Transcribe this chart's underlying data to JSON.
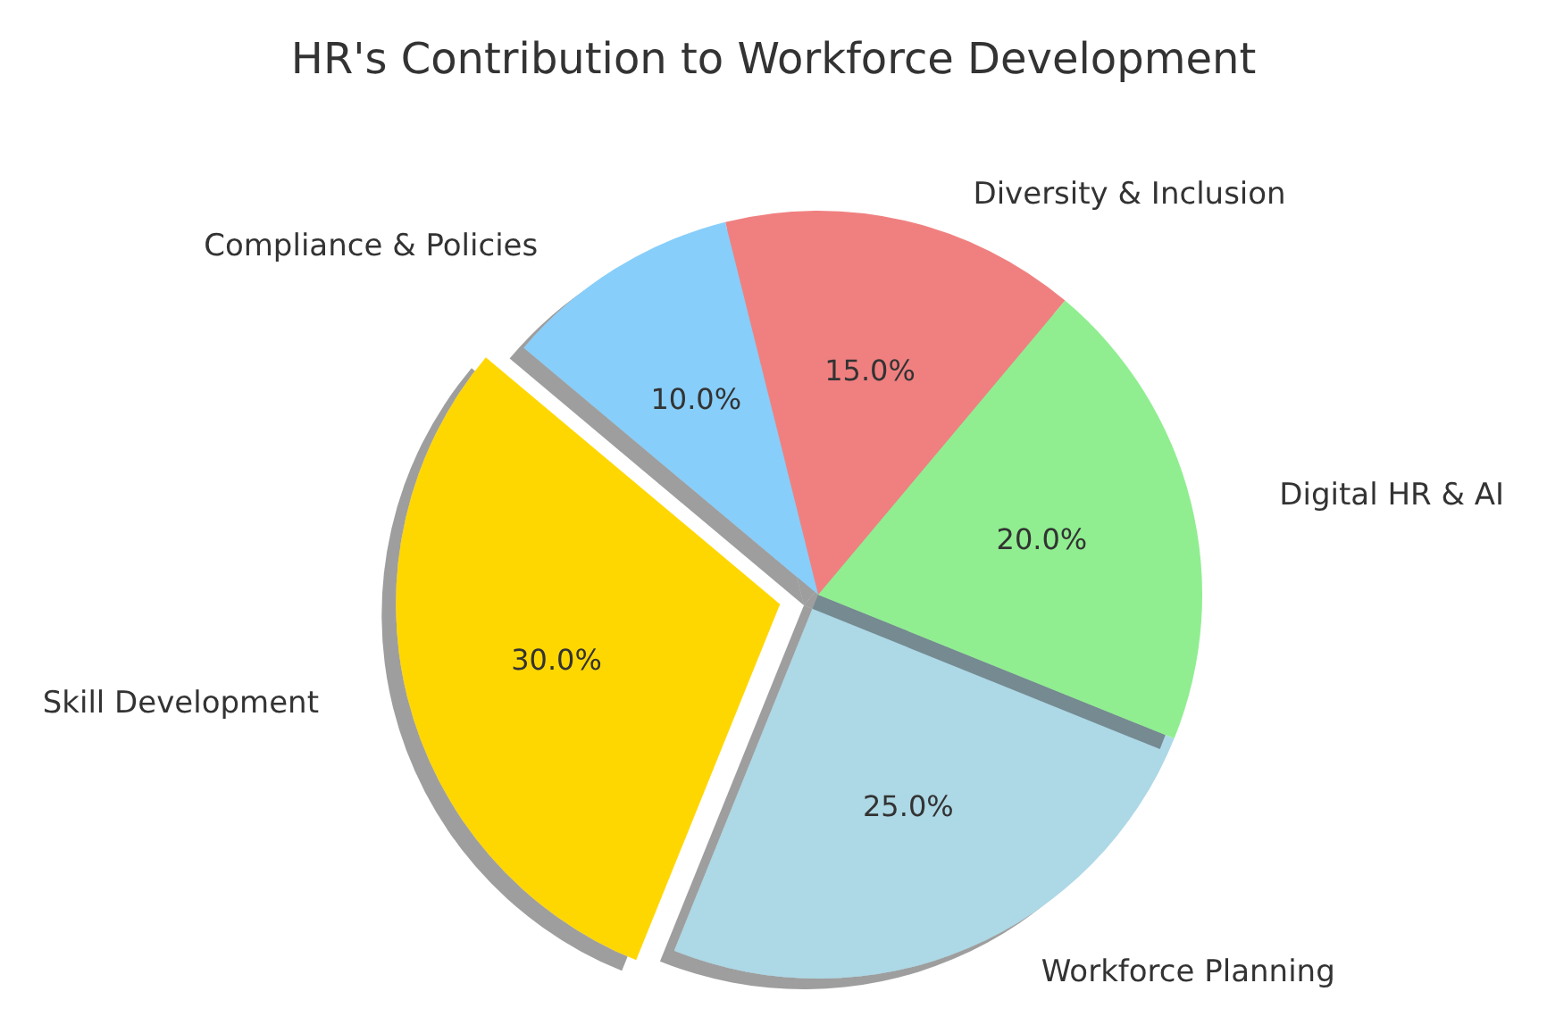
{
  "chart_data": {
    "type": "pie",
    "title": "HR's Contribution to Workforce Development",
    "categories": [
      "Skill Development",
      "Workforce Planning",
      "Digital HR & AI",
      "Diversity & Inclusion",
      "Compliance & Policies"
    ],
    "values": [
      30,
      25,
      20,
      15,
      10
    ],
    "colors": [
      "#ffd700",
      "#add8e6",
      "#90ee90",
      "#f08080",
      "#87cefa"
    ],
    "value_labels": [
      "30.0%",
      "25.0%",
      "20.0%",
      "15.0%",
      "10.0%"
    ],
    "legend": false
  }
}
